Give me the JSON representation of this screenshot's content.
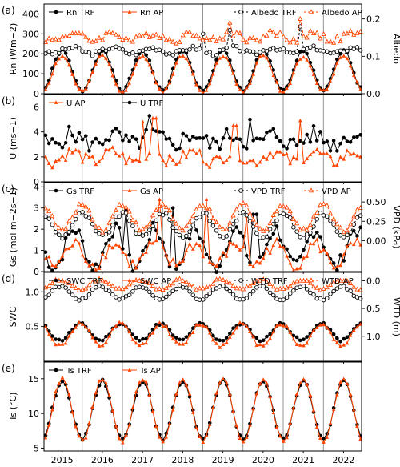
{
  "chart_data": {
    "type": "line",
    "x_axis": {
      "start": 2014.55,
      "end": 2022.45,
      "tick_labels": [
        "2015",
        "2016",
        "2017",
        "2018",
        "2019",
        "2020",
        "2021",
        "2022"
      ],
      "tick_positions": [
        2015,
        2016,
        2017,
        2018,
        2019,
        2020,
        2021,
        2022
      ],
      "vlines": [
        2015.5,
        2016.5,
        2017.5,
        2018.5,
        2019.5,
        2020.5,
        2021.5
      ]
    },
    "colors": {
      "TRF": "#000000",
      "AP": "#ff4500"
    },
    "panels": [
      {
        "id": "a",
        "label": "(a)",
        "left": {
          "label": "Rn (Wm−2)",
          "ylim": [
            0,
            450
          ],
          "ticks": [
            "0",
            "100",
            "200",
            "300",
            "400"
          ],
          "tick_values": [
            0,
            100,
            200,
            300,
            400
          ]
        },
        "right": {
          "label": "Albedo",
          "ylim": [
            0,
            0.24
          ],
          "ticks": [
            "0.0",
            "0.1",
            "0.2"
          ],
          "tick_values": [
            0,
            0.1,
            0.2
          ]
        },
        "legend": [
          {
            "name": "Rn TRF",
            "series": "Rn_TRF"
          },
          {
            "name": "Rn AP",
            "series": "Rn_AP"
          },
          {
            "name": "Albedo TRF",
            "series": "Alb_TRF"
          },
          {
            "name": "Albedo AP",
            "series": "Alb_AP"
          }
        ],
        "series": [
          {
            "id": "Rn_TRF",
            "axis": "left",
            "color": "TRF",
            "marker": "circle",
            "dash": false,
            "gen": {
              "kind": "seasonal",
              "mean": 115,
              "amp": 100,
              "phase": 0.0,
              "noise": 8,
              "seed": 1
            }
          },
          {
            "id": "Rn_AP",
            "axis": "left",
            "color": "AP",
            "marker": "triangle",
            "dash": false,
            "gen": {
              "kind": "seasonal",
              "mean": 100,
              "amp": 90,
              "phase": 0.0,
              "noise": 8,
              "seed": 2
            }
          },
          {
            "id": "Alb_TRF",
            "axis": "right",
            "color": "TRF",
            "marker": "circle_open",
            "dash": true,
            "gen": {
              "kind": "flat",
              "mean": 0.115,
              "amp": 0.008,
              "noise": 0.006,
              "seed": 3,
              "spikes": [
                [
                  2018.5,
                  0.16
                ],
                [
                  2019.15,
                  0.17
                ],
                [
                  2020.95,
                  0.18
                ]
              ]
            }
          },
          {
            "id": "Alb_AP",
            "axis": "right",
            "color": "AP",
            "marker": "triangle_open",
            "dash": true,
            "gen": {
              "kind": "flat",
              "mean": 0.152,
              "amp": 0.01,
              "noise": 0.01,
              "seed": 4,
              "spikes": [
                [
                  2019.2,
                  0.19
                ],
                [
                  2020.95,
                  0.2
                ]
              ]
            }
          }
        ]
      },
      {
        "id": "b",
        "label": "(b)",
        "left": {
          "label": "U (ms−1)",
          "ylim": [
            0,
            7
          ],
          "ticks": [
            "0",
            "2",
            "4",
            "6"
          ],
          "tick_values": [
            0,
            2,
            4,
            6
          ]
        },
        "right": null,
        "legend": [
          {
            "name": "U AP",
            "series": "U_AP"
          },
          {
            "name": "U TRF",
            "series": "U_TRF"
          }
        ],
        "series": [
          {
            "id": "U_TRF",
            "axis": "left",
            "color": "TRF",
            "marker": "circle",
            "dash": false,
            "gen": {
              "kind": "flat",
              "mean": 3.4,
              "amp": 0.4,
              "noise": 0.7,
              "seed": 5,
              "spikes": [
                [
                  2017.2,
                  5.3
                ],
                [
                  2019.7,
                  5.0
                ]
              ]
            }
          },
          {
            "id": "U_AP",
            "axis": "left",
            "color": "AP",
            "marker": "triangle",
            "dash": false,
            "gen": {
              "kind": "flat",
              "mean": 2.0,
              "amp": 0.4,
              "noise": 0.5,
              "seed": 6,
              "spikes": [
                [
                  2017.0,
                  4.8
                ],
                [
                  2017.3,
                  5.1
                ],
                [
                  2019.3,
                  4.5
                ],
                [
                  2020.9,
                  4.9
                ]
              ]
            }
          }
        ]
      },
      {
        "id": "c",
        "label": "(c)",
        "left": {
          "label": "Gs (mol m−2s−1)",
          "ylim": [
            0,
            4.2
          ],
          "ticks": [
            "0",
            "1",
            "2",
            "3",
            "4"
          ],
          "tick_values": [
            0,
            1,
            2,
            3,
            4
          ]
        },
        "right": {
          "label": "VPD (kPa)",
          "ylim": [
            -0.4,
            0.75
          ],
          "ticks": [
            "0.00",
            "0.25",
            "0.50"
          ],
          "tick_values": [
            0,
            0.25,
            0.5
          ]
        },
        "legend": [
          {
            "name": "Gs TRF",
            "series": "Gs_TRF"
          },
          {
            "name": "Gs AP",
            "series": "Gs_AP"
          },
          {
            "name": "VPD TRF",
            "series": "VPD_TRF"
          },
          {
            "name": "VPD AP",
            "series": "VPD_AP"
          }
        ],
        "series": [
          {
            "id": "Gs_TRF",
            "axis": "left",
            "color": "TRF",
            "marker": "circle",
            "dash": false,
            "gen": {
              "kind": "seasonal",
              "mean": 1.1,
              "amp": 0.9,
              "phase": 0.3,
              "noise": 0.35,
              "seed": 7,
              "spikes": [
                [
                  2016.6,
                  2.9
                ],
                [
                  2017.75,
                  3.0
                ],
                [
                  2019.8,
                  2.7
                ]
              ]
            }
          },
          {
            "id": "Gs_AP",
            "axis": "left",
            "color": "AP",
            "marker": "triangle",
            "dash": false,
            "gen": {
              "kind": "seasonal",
              "mean": 0.8,
              "amp": 0.5,
              "phase": 0.3,
              "noise": 0.3,
              "seed": 8,
              "spikes": [
                [
                  2017.45,
                  3.4
                ],
                [
                  2018.6,
                  3.4
                ],
                [
                  2019.6,
                  2.6
                ]
              ]
            }
          },
          {
            "id": "VPD_TRF",
            "axis": "right",
            "color": "TRF",
            "marker": "circle_open",
            "dash": true,
            "gen": {
              "kind": "seasonal",
              "mean": 0.2,
              "amp": 0.15,
              "phase": 0.5,
              "noise": 0.03,
              "seed": 9
            }
          },
          {
            "id": "VPD_AP",
            "axis": "right",
            "color": "AP",
            "marker": "triangle_open",
            "dash": true,
            "gen": {
              "kind": "seasonal",
              "mean": 0.3,
              "amp": 0.17,
              "phase": 0.5,
              "noise": 0.03,
              "seed": 10
            }
          }
        ]
      },
      {
        "id": "d",
        "label": "(d)",
        "left": {
          "label": "SWC",
          "ylim": [
            0,
            1.28
          ],
          "ticks": [
            "0.5",
            "1.0"
          ],
          "tick_values": [
            0.5,
            1.0
          ]
        },
        "right": {
          "label": "WTD (m)",
          "ylim": [
            1.45,
            -0.15
          ],
          "ticks": [
            "0.0",
            "0.5",
            "1.0"
          ],
          "tick_values": [
            0,
            0.5,
            1.0
          ]
        },
        "legend": [
          {
            "name": "SWC TRF",
            "series": "SWC_TRF"
          },
          {
            "name": "SWC AP",
            "series": "SWC_AP"
          },
          {
            "name": "WTD TRF",
            "series": "WTD_TRF"
          },
          {
            "name": "WTD AP",
            "series": "WTD_AP"
          }
        ],
        "series": [
          {
            "id": "SWC_TRF",
            "axis": "left",
            "color": "TRF",
            "marker": "circle",
            "dash": false,
            "gen": {
              "kind": "seasonal",
              "mean": 0.42,
              "amp": 0.12,
              "phase": 0.45,
              "noise": 0.02,
              "seed": 11
            }
          },
          {
            "id": "SWC_AP",
            "axis": "left",
            "color": "AP",
            "marker": "triangle",
            "dash": false,
            "gen": {
              "kind": "seasonal",
              "mean": 0.38,
              "amp": 0.16,
              "phase": 0.45,
              "noise": 0.03,
              "seed": 12
            }
          },
          {
            "id": "WTD_TRF",
            "axis": "right",
            "color": "TRF",
            "marker": "circle_open",
            "dash": true,
            "gen": {
              "kind": "seasonal",
              "mean": 0.22,
              "amp": 0.12,
              "phase": 0.45,
              "noise": 0.02,
              "seed": 13
            }
          },
          {
            "id": "WTD_AP",
            "axis": "right",
            "color": "AP",
            "marker": "triangle_open",
            "dash": true,
            "gen": {
              "kind": "seasonal",
              "mean": 0.07,
              "amp": 0.09,
              "phase": 0.45,
              "noise": 0.02,
              "seed": 14
            }
          }
        ]
      },
      {
        "id": "e",
        "label": "(e)",
        "left": {
          "label": "Ts (°C)",
          "ylim": [
            4.6,
            17.4
          ],
          "ticks": [
            "5",
            "10",
            "15"
          ],
          "tick_values": [
            5,
            10,
            15
          ]
        },
        "right": null,
        "legend": [
          {
            "name": "Ts TRF",
            "series": "Ts_TRF"
          },
          {
            "name": "Ts AP",
            "series": "Ts_AP"
          }
        ],
        "series": [
          {
            "id": "Ts_TRF",
            "axis": "left",
            "color": "TRF",
            "marker": "circle",
            "dash": false,
            "gen": {
              "kind": "seasonal",
              "mean": 10.5,
              "amp": 4.2,
              "phase": 0.0,
              "noise": 0.2,
              "seed": 15
            }
          },
          {
            "id": "Ts_AP",
            "axis": "left",
            "color": "AP",
            "marker": "triangle",
            "dash": false,
            "gen": {
              "kind": "seasonal",
              "mean": 10.5,
              "amp": 4.5,
              "phase": 0.0,
              "noise": 0.25,
              "seed": 16
            }
          }
        ]
      }
    ]
  }
}
